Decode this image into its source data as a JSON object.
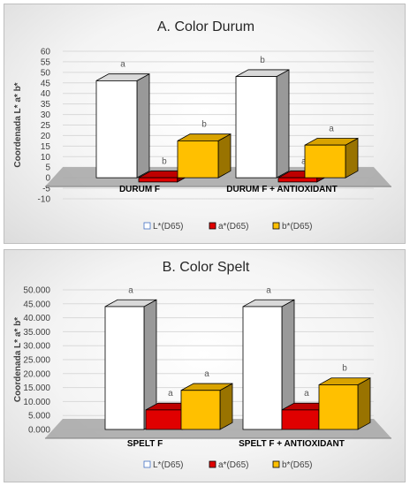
{
  "chart_data": [
    {
      "type": "bar",
      "title": "A. Color Durum",
      "ylabel": "Coordenada L* a* b*",
      "categories": [
        "DURUM F",
        "DURUM F + ANTIOXIDANT"
      ],
      "ylim": [
        -10,
        60
      ],
      "yticks": [
        "-10",
        "-5",
        "0",
        "5",
        "10",
        "15",
        "20",
        "25",
        "30",
        "35",
        "40",
        "45",
        "50",
        "55",
        "60"
      ],
      "series": [
        {
          "name": "L*(D65)",
          "color": "#ffffff",
          "values": [
            46,
            48
          ],
          "labels": [
            "a",
            "b"
          ]
        },
        {
          "name": "a*(D65)",
          "color": "#e00000",
          "values": [
            -2,
            -2
          ],
          "labels": [
            "b",
            "a"
          ]
        },
        {
          "name": "b*(D65)",
          "color": "#ffc000",
          "values": [
            17.5,
            15.5
          ],
          "labels": [
            "b",
            "a"
          ]
        }
      ],
      "legend": "bottom"
    },
    {
      "type": "bar",
      "title": "B. Color Spelt",
      "ylabel": "Coordenada L* a* b*",
      "categories": [
        "SPELT F",
        "SPELT F + ANTIOXIDANT"
      ],
      "ylim": [
        0,
        50
      ],
      "yticks": [
        "0.000",
        "5.000",
        "10.000",
        "15.000",
        "20.000",
        "25.000",
        "30.000",
        "35.000",
        "40.000",
        "45.000",
        "50.000"
      ],
      "series": [
        {
          "name": "L*(D65)",
          "color": "#ffffff",
          "values": [
            44,
            44
          ],
          "labels": [
            "a",
            "a"
          ]
        },
        {
          "name": "a*(D65)",
          "color": "#e00000",
          "values": [
            7,
            7
          ],
          "labels": [
            "a",
            "a"
          ]
        },
        {
          "name": "b*(D65)",
          "color": "#ffc000",
          "values": [
            14,
            16
          ],
          "labels": [
            "a",
            "b"
          ]
        }
      ],
      "legend": "bottom"
    }
  ]
}
